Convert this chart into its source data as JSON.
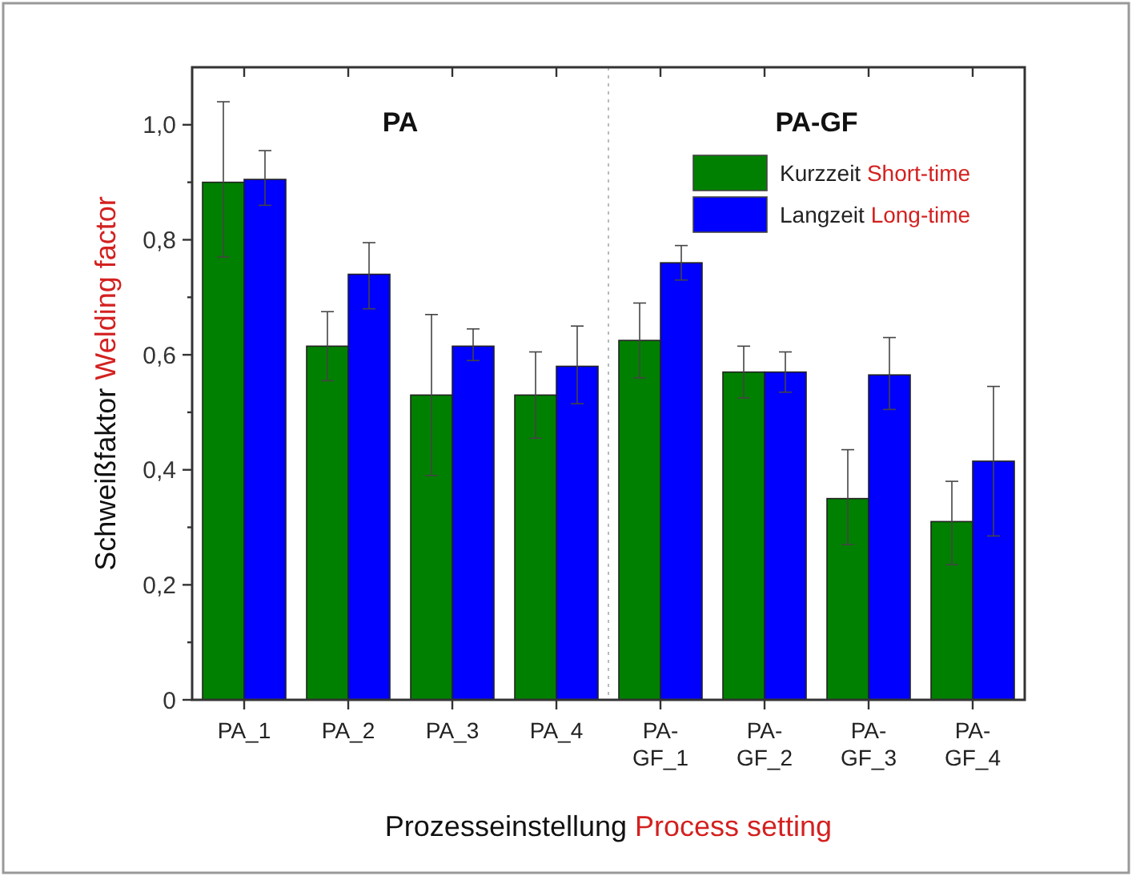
{
  "chart_data": {
    "type": "bar",
    "xlabel": "Prozesseinstellung Process setting",
    "ylabel": "Schweißfaktor Welding factor",
    "categories": [
      "PA_1",
      "PA_2",
      "PA_3",
      "PA_4",
      "PA-GF_1",
      "PA-GF_2",
      "PA-GF_3",
      "PA-GF_4"
    ],
    "series": [
      {
        "name": "Kurzzeit Short-time",
        "color": "#008000",
        "values": [
          0.9,
          0.615,
          0.53,
          0.53,
          0.625,
          0.57,
          0.35,
          0.31
        ],
        "errors": [
          [
            0.77,
            1.04
          ],
          [
            0.555,
            0.675
          ],
          [
            0.39,
            0.67
          ],
          [
            0.455,
            0.605
          ],
          [
            0.56,
            0.69
          ],
          [
            0.525,
            0.615
          ],
          [
            0.27,
            0.435
          ],
          [
            0.235,
            0.38
          ]
        ]
      },
      {
        "name": "Langzeit Long-time",
        "color": "#0000ff",
        "values": [
          0.905,
          0.74,
          0.615,
          0.58,
          0.76,
          0.57,
          0.565,
          0.415
        ],
        "errors": [
          [
            0.86,
            0.955
          ],
          [
            0.68,
            0.795
          ],
          [
            0.59,
            0.645
          ],
          [
            0.515,
            0.65
          ],
          [
            0.73,
            0.79
          ],
          [
            0.535,
            0.605
          ],
          [
            0.505,
            0.63
          ],
          [
            0.285,
            0.545
          ]
        ]
      }
    ],
    "ylim": [
      0,
      1.1
    ],
    "yticks": [
      0,
      {
        "value": 0.1,
        "label": null
      },
      {
        "value": 0.2,
        "label": "0,2"
      },
      {
        "value": 0.3,
        "label": null
      },
      {
        "value": 0.4,
        "label": "0,4"
      },
      {
        "value": 0.5,
        "label": null
      },
      {
        "value": 0.6,
        "label": "0,6"
      },
      {
        "value": 0.7,
        "label": null
      },
      {
        "value": 0.8,
        "label": "0,8"
      },
      {
        "value": 0.9,
        "label": null
      },
      {
        "value": 1.0,
        "label": "1,0"
      }
    ],
    "annotations": [
      "PA",
      "PA-GF"
    ],
    "legend": "top right",
    "grid": false
  }
}
